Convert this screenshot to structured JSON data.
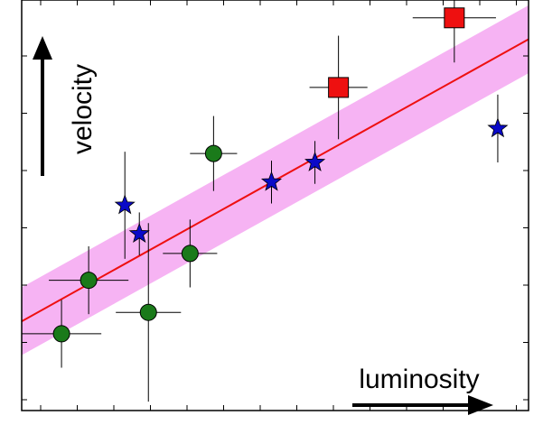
{
  "chart_data": {
    "type": "scatter",
    "title": "",
    "xlabel": "luminosity",
    "ylabel": "velocity",
    "xlim": [
      0,
      28
    ],
    "ylim": [
      0,
      23
    ],
    "grid": false,
    "legend": "none",
    "series": [
      {
        "marker": "circle",
        "color": "#1a7a1a",
        "points": [
          {
            "x": 2.2,
            "y": 4.3,
            "xerr": 2.2,
            "yerr": 1.9
          },
          {
            "x": 3.7,
            "y": 7.3,
            "xerr": 2.2,
            "yerr": 1.9
          },
          {
            "x": 7.0,
            "y": 5.5,
            "xerr": 1.8,
            "yerr": 5.0
          },
          {
            "x": 9.3,
            "y": 8.8,
            "xerr": 1.5,
            "yerr": 1.9
          },
          {
            "x": 10.6,
            "y": 14.4,
            "xerr": 1.3,
            "yerr": 2.1
          }
        ]
      },
      {
        "marker": "star",
        "color": "#0a0ac8",
        "points": [
          {
            "x": 5.7,
            "y": 11.5,
            "xerr": 0,
            "yerr": 3.0
          },
          {
            "x": 6.5,
            "y": 9.9,
            "xerr": 0,
            "yerr": 1.2
          },
          {
            "x": 13.8,
            "y": 12.8,
            "xerr": 0,
            "yerr": 1.2
          },
          {
            "x": 16.2,
            "y": 13.9,
            "xerr": 0,
            "yerr": 1.2
          },
          {
            "x": 26.3,
            "y": 15.8,
            "xerr": 0,
            "yerr": 1.9
          }
        ]
      },
      {
        "marker": "square",
        "color": "#ee1010",
        "points": [
          {
            "x": 17.5,
            "y": 18.1,
            "xerr": 1.6,
            "yerr": 2.9
          },
          {
            "x": 23.9,
            "y": 22.0,
            "xerr": 2.3,
            "yerr": 2.5
          }
        ]
      }
    ],
    "fit": {
      "color": "#ee1010",
      "band_color": "#f6b3f3",
      "line": {
        "x0": 0,
        "y0": 5.0,
        "x1": 28,
        "y1": 20.8
      },
      "band_halfwidth": 1.9
    }
  }
}
